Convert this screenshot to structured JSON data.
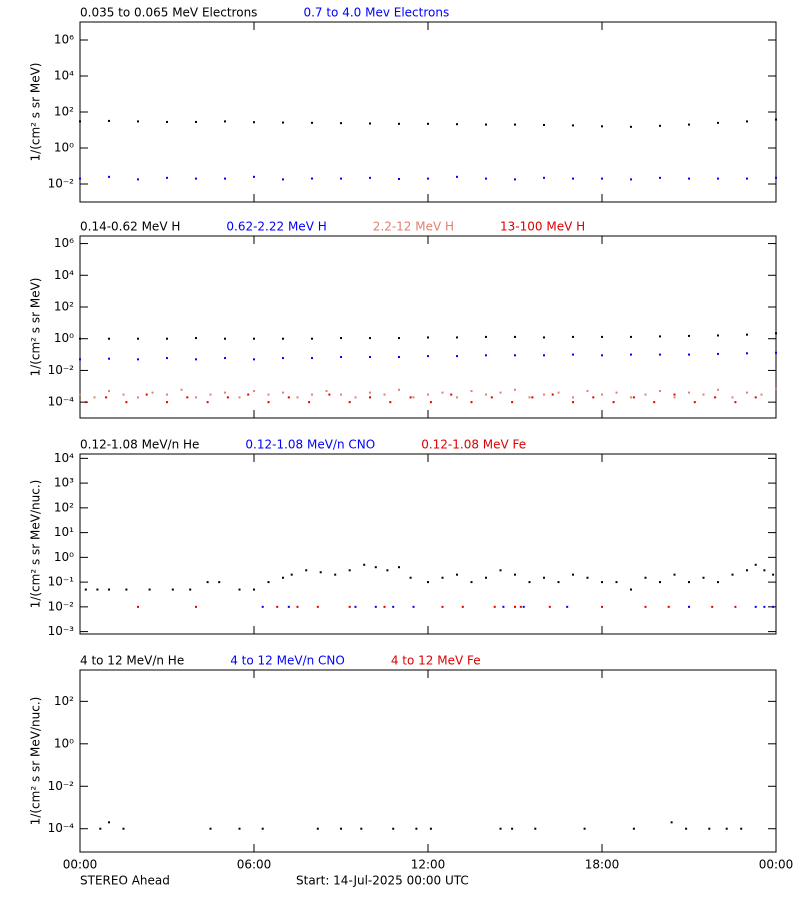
{
  "chart_data": [
    {
      "type": "scatter",
      "y_label": "1/(cm² s sr MeV)",
      "log_y": true,
      "ylim": [
        0.001,
        10000000
      ],
      "yticks": [
        {
          "value": 0.01,
          "label": "10⁻²"
        },
        {
          "value": 1,
          "label": "10⁰"
        },
        {
          "value": 100,
          "label": "10²"
        },
        {
          "value": 10000,
          "label": "10⁴"
        },
        {
          "value": 1000000,
          "label": "10⁶"
        }
      ],
      "series": [
        {
          "name": "0.035 to 0.065 MeV Electrons",
          "color": "#000000",
          "x": [
            0,
            1,
            2,
            3,
            4,
            5,
            6,
            7,
            8,
            9,
            10,
            11,
            12,
            13,
            14,
            15,
            16,
            17,
            18,
            19,
            20,
            21,
            22,
            23,
            24
          ],
          "values": [
            30,
            32,
            30,
            28,
            28,
            30,
            27,
            26,
            25,
            24,
            23,
            22,
            22,
            21,
            20,
            20,
            19,
            18,
            16,
            15,
            17,
            20,
            25,
            30,
            38
          ]
        },
        {
          "name": "0.7 to 4.0 Mev Electrons",
          "color": "#0000ff",
          "x": [
            0,
            1,
            2,
            3,
            4,
            5,
            6,
            7,
            8,
            9,
            10,
            11,
            12,
            13,
            14,
            15,
            16,
            17,
            18,
            19,
            20,
            21,
            22,
            23,
            24
          ],
          "values": [
            0.02,
            0.025,
            0.018,
            0.022,
            0.02,
            0.02,
            0.025,
            0.018,
            0.02,
            0.02,
            0.022,
            0.019,
            0.02,
            0.025,
            0.02,
            0.018,
            0.022,
            0.02,
            0.02,
            0.018,
            0.022,
            0.02,
            0.02,
            0.02,
            0.022
          ]
        }
      ]
    },
    {
      "type": "scatter",
      "y_label": "1/(cm² s sr MeV)",
      "log_y": true,
      "ylim": [
        1e-05,
        3000000
      ],
      "yticks": [
        {
          "value": 0.0001,
          "label": "10⁻⁴"
        },
        {
          "value": 0.01,
          "label": "10⁻²"
        },
        {
          "value": 1,
          "label": "10⁰"
        },
        {
          "value": 100,
          "label": "10²"
        },
        {
          "value": 10000,
          "label": "10⁴"
        },
        {
          "value": 1000000,
          "label": "10⁶"
        }
      ],
      "series": [
        {
          "name": "0.14-0.62 MeV H",
          "color": "#000000",
          "x": [
            0,
            1,
            2,
            3,
            4,
            5,
            6,
            7,
            8,
            9,
            10,
            11,
            12,
            13,
            14,
            15,
            16,
            17,
            18,
            19,
            20,
            21,
            22,
            23,
            24
          ],
          "values": [
            1,
            1,
            1,
            1,
            1.1,
            1,
            1,
            1,
            1,
            1.1,
            1.1,
            1.1,
            1.2,
            1.2,
            1.3,
            1.3,
            1.2,
            1.3,
            1.3,
            1.3,
            1.4,
            1.5,
            1.6,
            1.8,
            2.2
          ]
        },
        {
          "name": "0.62-2.22 MeV H",
          "color": "#0000ff",
          "x": [
            0,
            1,
            2,
            3,
            4,
            5,
            6,
            7,
            8,
            9,
            10,
            11,
            12,
            13,
            14,
            15,
            16,
            17,
            18,
            19,
            20,
            21,
            22,
            23,
            24
          ],
          "values": [
            0.05,
            0.055,
            0.05,
            0.06,
            0.05,
            0.06,
            0.05,
            0.06,
            0.06,
            0.07,
            0.07,
            0.07,
            0.08,
            0.08,
            0.09,
            0.09,
            0.09,
            0.1,
            0.09,
            0.1,
            0.1,
            0.1,
            0.11,
            0.12,
            0.13
          ]
        },
        {
          "name": "2.2-12 MeV H",
          "color": "#e08070",
          "x": [
            0,
            0.5,
            1,
            1.5,
            2,
            2.5,
            3,
            3.5,
            4,
            4.5,
            5,
            5.5,
            6,
            6.5,
            7,
            7.5,
            8,
            8.5,
            9,
            9.5,
            10,
            10.5,
            11,
            11.5,
            12,
            12.5,
            13,
            13.5,
            14,
            14.5,
            15,
            15.5,
            16,
            16.5,
            17,
            17.5,
            18,
            18.5,
            19,
            19.5,
            20,
            20.5,
            21,
            21.5,
            22,
            22.5,
            23,
            23.5,
            24
          ],
          "values": [
            0.0003,
            0.0002,
            0.0005,
            0.0003,
            0.0002,
            0.0004,
            0.0003,
            0.0006,
            0.0002,
            0.0003,
            0.0004,
            0.0002,
            0.0005,
            0.0003,
            0.0004,
            0.0002,
            0.0003,
            0.0005,
            0.0003,
            0.0002,
            0.0004,
            0.0003,
            0.0006,
            0.0002,
            0.0003,
            0.0004,
            0.0002,
            0.0005,
            0.0003,
            0.0004,
            0.0006,
            0.0002,
            0.0003,
            0.0004,
            0.0002,
            0.0005,
            0.0003,
            0.0004,
            0.0002,
            0.0003,
            0.0005,
            0.0002,
            0.0004,
            0.0003,
            0.0006,
            0.0002,
            0.0004,
            0.0003,
            0.0007
          ]
        },
        {
          "name": "13-100 MeV H",
          "color": "#dd0000",
          "x": [
            0.2,
            0.9,
            1.6,
            2.3,
            3,
            3.7,
            4.4,
            5.1,
            5.8,
            6.5,
            7.2,
            7.9,
            8.6,
            9.3,
            10,
            10.7,
            11.4,
            12.1,
            12.8,
            13.5,
            14.2,
            14.9,
            15.6,
            16.3,
            17,
            17.7,
            18.4,
            19.1,
            19.8,
            20.5,
            21.2,
            21.9,
            22.6,
            23.3
          ],
          "values": [
            0.0001,
            0.0002,
            0.0001,
            0.0003,
            0.0001,
            0.0002,
            0.0001,
            0.0002,
            0.0003,
            0.0001,
            0.0002,
            0.0001,
            0.0003,
            0.0001,
            0.0002,
            0.0001,
            0.0002,
            0.0001,
            0.0003,
            0.0001,
            0.0002,
            0.0001,
            0.0002,
            0.0003,
            0.0001,
            0.0002,
            0.0001,
            0.0002,
            0.0001,
            0.0003,
            0.0001,
            0.0002,
            0.0001,
            0.0002
          ]
        }
      ]
    },
    {
      "type": "scatter",
      "y_label": "1/(cm² s sr MeV/nuc.)",
      "log_y": true,
      "ylim": [
        0.0008,
        15000
      ],
      "yticks": [
        {
          "value": 0.001,
          "label": "10⁻³"
        },
        {
          "value": 0.01,
          "label": "10⁻²"
        },
        {
          "value": 0.1,
          "label": "10⁻¹"
        },
        {
          "value": 1,
          "label": "10⁰"
        },
        {
          "value": 10,
          "label": "10¹"
        },
        {
          "value": 100,
          "label": "10²"
        },
        {
          "value": 1000,
          "label": "10³"
        },
        {
          "value": 10000,
          "label": "10⁴"
        }
      ],
      "series": [
        {
          "name": "0.12-1.08 MeV/n He",
          "color": "#000000",
          "x": [
            0.2,
            0.6,
            1,
            1.6,
            2.4,
            3.2,
            3.8,
            4.4,
            4.8,
            5.5,
            6,
            6.5,
            7,
            7.3,
            7.8,
            8.3,
            8.8,
            9.3,
            9.8,
            10.2,
            10.6,
            11,
            11.4,
            12,
            12.5,
            13,
            13.5,
            14,
            14.5,
            15,
            15.5,
            16,
            16.5,
            17,
            17.5,
            18,
            18.5,
            19,
            19.5,
            20,
            20.5,
            21,
            21.5,
            22,
            22.5,
            23,
            23.3,
            23.6,
            23.9
          ],
          "values": [
            0.05,
            0.05,
            0.05,
            0.05,
            0.05,
            0.05,
            0.05,
            0.1,
            0.1,
            0.05,
            0.05,
            0.1,
            0.15,
            0.2,
            0.3,
            0.25,
            0.2,
            0.3,
            0.5,
            0.4,
            0.3,
            0.4,
            0.15,
            0.1,
            0.15,
            0.2,
            0.1,
            0.15,
            0.3,
            0.2,
            0.1,
            0.15,
            0.1,
            0.2,
            0.15,
            0.1,
            0.1,
            0.05,
            0.15,
            0.1,
            0.2,
            0.1,
            0.15,
            0.1,
            0.2,
            0.3,
            0.5,
            0.3,
            0.2
          ]
        },
        {
          "name": "0.12-1.08 MeV/n CNO",
          "color": "#0000ff",
          "x": [
            6.3,
            7.2,
            9.5,
            10.2,
            10.8,
            11.5,
            14.6,
            15.3,
            16.8,
            21,
            23.3,
            23.6,
            23.9
          ],
          "values": [
            0.01,
            0.01,
            0.01,
            0.01,
            0.01,
            0.01,
            0.01,
            0.01,
            0.01,
            0.01,
            0.01,
            0.01,
            0.01
          ]
        },
        {
          "name": "0.12-1.08 MeV Fe",
          "color": "#dd0000",
          "x": [
            2,
            4,
            6.8,
            7.5,
            8.2,
            9.3,
            10.5,
            12.5,
            13.2,
            14.3,
            15,
            15.2,
            16.2,
            18,
            19.5,
            20.3,
            21.8,
            22.6
          ],
          "values": [
            0.01,
            0.01,
            0.01,
            0.01,
            0.01,
            0.01,
            0.01,
            0.01,
            0.01,
            0.01,
            0.01,
            0.01,
            0.01,
            0.01,
            0.01,
            0.01,
            0.01,
            0.01
          ]
        }
      ]
    },
    {
      "type": "scatter",
      "y_label": "1/(cm² s sr MeV/nuc.)",
      "log_y": true,
      "ylim": [
        8e-06,
        3000
      ],
      "yticks": [
        {
          "value": 0.0001,
          "label": "10⁻⁴"
        },
        {
          "value": 0.01,
          "label": "10⁻²"
        },
        {
          "value": 1,
          "label": "10⁰"
        },
        {
          "value": 100,
          "label": "10²"
        }
      ],
      "xlim": [
        0,
        24
      ],
      "xticks": [
        {
          "value": 0,
          "label": "00:00"
        },
        {
          "value": 6,
          "label": "06:00"
        },
        {
          "value": 12,
          "label": "12:00"
        },
        {
          "value": 18,
          "label": "18:00"
        },
        {
          "value": 24,
          "label": "00:00"
        }
      ],
      "series": [
        {
          "name": "4 to 12 MeV/n He",
          "color": "#000000",
          "x": [
            0.7,
            1,
            1.5,
            4.5,
            5.5,
            6.3,
            8.2,
            9,
            9.7,
            10.8,
            11.6,
            12.1,
            14.5,
            14.9,
            15.7,
            17.4,
            19.1,
            20.4,
            20.9,
            21.7,
            22.3,
            22.8
          ],
          "values": [
            0.0001,
            0.0002,
            0.0001,
            0.0001,
            0.0001,
            0.0001,
            0.0001,
            0.0001,
            0.0001,
            0.0001,
            0.0001,
            0.0001,
            0.0001,
            0.0001,
            0.0001,
            0.0001,
            0.0001,
            0.0002,
            0.0001,
            0.0001,
            0.0001,
            0.0001
          ]
        },
        {
          "name": "4 to 12 MeV/n CNO",
          "color": "#0000ff",
          "x": [],
          "values": []
        },
        {
          "name": "4 to 12 MeV Fe",
          "color": "#dd0000",
          "x": [],
          "values": []
        }
      ]
    }
  ],
  "footer": {
    "left": "STEREO Ahead",
    "right": "Start: 14-Jul-2025 00:00 UTC"
  }
}
